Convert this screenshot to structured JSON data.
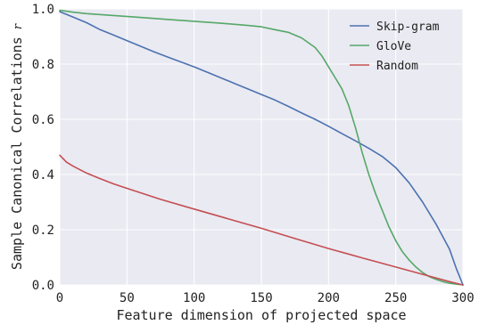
{
  "chart_data": {
    "type": "line",
    "xlabel": "Feature dimension of projected space",
    "ylabel": "Sample Canonical Correlations",
    "ylabel_symbol": "r",
    "xlim": [
      0,
      300
    ],
    "ylim": [
      0.0,
      1.0
    ],
    "xticks": [
      0,
      50,
      100,
      150,
      200,
      250,
      300
    ],
    "yticks": [
      0.0,
      0.2,
      0.4,
      0.6,
      0.8,
      1.0
    ],
    "xtick_labels": [
      "0",
      "50",
      "100",
      "150",
      "200",
      "250",
      "300"
    ],
    "ytick_labels": [
      "0.0",
      "0.2",
      "0.4",
      "0.6",
      "0.8",
      "1.0"
    ],
    "grid": true,
    "legend_position": "top-right",
    "series": [
      {
        "name": "Skip-gram",
        "color": "#4c72b0",
        "x": [
          0,
          10,
          20,
          30,
          40,
          50,
          60,
          70,
          80,
          90,
          100,
          110,
          120,
          130,
          140,
          150,
          160,
          170,
          180,
          190,
          200,
          210,
          220,
          230,
          240,
          250,
          260,
          270,
          280,
          290,
          295,
          300
        ],
        "y": [
          0.99,
          0.97,
          0.95,
          0.925,
          0.905,
          0.885,
          0.865,
          0.845,
          0.826,
          0.808,
          0.79,
          0.77,
          0.75,
          0.73,
          0.71,
          0.69,
          0.67,
          0.647,
          0.623,
          0.6,
          0.575,
          0.548,
          0.522,
          0.495,
          0.465,
          0.425,
          0.37,
          0.3,
          0.22,
          0.13,
          0.06,
          0.0
        ]
      },
      {
        "name": "GloVe",
        "color": "#55a868",
        "x": [
          0,
          10,
          20,
          40,
          60,
          80,
          100,
          120,
          140,
          150,
          160,
          170,
          180,
          190,
          195,
          200,
          205,
          210,
          215,
          220,
          225,
          230,
          235,
          240,
          245,
          250,
          255,
          260,
          265,
          270,
          275,
          280,
          285,
          290,
          295,
          300
        ],
        "y": [
          0.995,
          0.988,
          0.983,
          0.976,
          0.969,
          0.962,
          0.955,
          0.948,
          0.94,
          0.935,
          0.925,
          0.915,
          0.895,
          0.86,
          0.83,
          0.79,
          0.75,
          0.71,
          0.65,
          0.57,
          0.48,
          0.4,
          0.33,
          0.27,
          0.21,
          0.16,
          0.12,
          0.09,
          0.065,
          0.045,
          0.03,
          0.02,
          0.012,
          0.006,
          0.003,
          0.0
        ]
      },
      {
        "name": "Random",
        "color": "#c44e52",
        "x": [
          0,
          5,
          10,
          20,
          30,
          40,
          50,
          75,
          100,
          125,
          150,
          175,
          200,
          225,
          250,
          275,
          290,
          300
        ],
        "y": [
          0.47,
          0.445,
          0.43,
          0.405,
          0.385,
          0.366,
          0.35,
          0.31,
          0.275,
          0.24,
          0.205,
          0.168,
          0.132,
          0.098,
          0.065,
          0.032,
          0.012,
          0.0
        ]
      }
    ]
  }
}
